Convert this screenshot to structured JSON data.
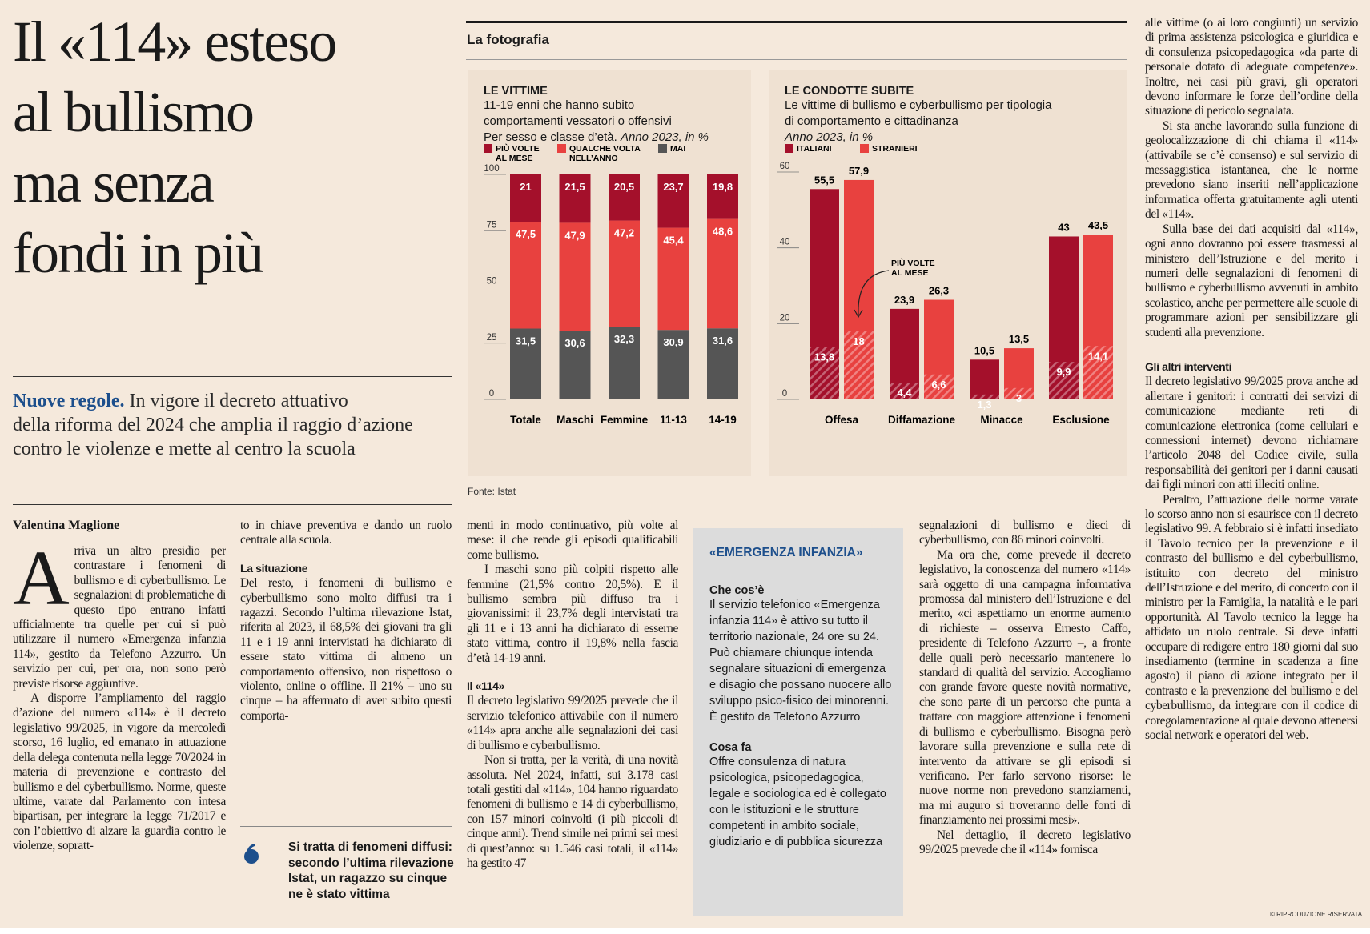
{
  "headline": [
    "Il «114» esteso",
    "al bullismo",
    "ma senza",
    "fondi in più"
  ],
  "standfirst": {
    "lead": "Nuove regole.",
    "lines": [
      " In vigore il decreto attuativo",
      "della riforma del 2024 che amplia il raggio d’azione",
      "contro le violenze e mette al centro la scuola"
    ]
  },
  "byline": "Valentina Maglione",
  "col1": {
    "dropcap": "A",
    "p1": "rriva un altro presidio per contrastare i fenomeni di bullismo e di cyberbullismo. Le segnalazioni di problematiche di questo tipo entrano infatti ufficialmente tra quelle per cui si può utilizzare il numero «Emergenza infanzia 114», gestito da Telefono Azzurro. Un servizio per cui, per ora, non sono però previste risorse aggiuntive.",
    "p2": "A disporre l’ampliamento del raggio d’azione del numero «114» è il decreto legislativo 99/2025, in vigore da mercoledì scorso, 16 luglio, ed emanato in attuazione della delega contenuta nella legge 70/2024 in materia di prevenzione e contrasto del bullismo e del cyberbullismo. Norme, queste ultime, varate dal Parlamento con intesa bipartisan, per integrare la legge 71/2017 e con l’obiettivo di alzare la guardia contro le violenze, sopratt-"
  },
  "col2": {
    "p1": "to in chiave preventiva e dando un ruolo centrale alla scuola.",
    "sub1": "La situazione",
    "p2": "Del resto, i fenomeni di bullismo e cyberbullismo sono molto diffusi tra i ragazzi. Secondo l’ultima rilevazione Istat, riferita al 2023, il 68,5% dei giovani tra gli 11 e i 19 anni intervistati ha dichiarato di essere stato vittima di almeno un comportamento offensivo, non rispettoso o violento, online o offline. Il 21% – uno su cinque – ha affermato di aver subito questi comporta-",
    "quote": "Si tratta di fenomeni diffusi: secondo l’ultima rilevazione Istat, un ragazzo su cinque ne è stato vittima"
  },
  "col3": {
    "p1": "menti in modo continuativo, più volte al mese: il che rende gli episodi qualificabili come bullismo.",
    "p2": "I maschi sono più colpiti rispetto alle femmine (21,5% contro 20,5%). E il bullismo sembra più diffuso tra i giovanissimi: il 23,7% degli intervistati tra gli 11 e i 13 anni ha dichiarato di esserne stato vittima, contro il 19,8% nella fascia d’età 14-19 anni.",
    "sub1": "Il «114»",
    "p3": "Il decreto legislativo 99/2025 prevede che il servizio telefonico attivabile con il numero «114» apra anche alle segnalazioni dei casi di bullismo e cyberbullismo.",
    "p4": "Non si tratta, per la verità, di una novità assoluta. Nel 2024, infatti, sui 3.178 casi totali gestiti dal «114», 104 hanno riguardato fenomeni di bullismo e 14 di cyberbullismo, con 157 minori coinvolti (i più piccoli di cinque anni). Trend simile nei primi sei mesi di quest’anno: su 1.546 casi totali, il «114» ha gestito 47"
  },
  "box": {
    "title": "«EMERGENZA INFANZIA»",
    "h1": "Che cos’è",
    "t1": "Il servizio telefonico «Emergenza infanzia 114» è attivo su tutto il territorio nazionale, 24 ore su 24. Può chiamare chiunque intenda segnalare situazioni di emergenza e disagio che possano nuocere allo sviluppo psico-fisico dei minorenni. È gestito da Telefono Azzurro",
    "h2": "Cosa fa",
    "t2": "Offre consulenza di natura psicologica, psicopedagogica, legale e sociologica ed è collegato con le istituzioni e le strutture competenti in ambito sociale, giudiziario e di pubblica sicurezza"
  },
  "col5": {
    "p1": "segnalazioni di bullismo e dieci di cyberbullismo, con 86 minori coinvolti.",
    "p2": "Ma ora che, come prevede il decreto legislativo, la conoscenza del numero «114» sarà oggetto di una campagna informativa promossa dal ministero dell’Istruzione e del merito, «ci aspettiamo un enorme aumento di richieste – osserva Ernesto Caffo, presidente di Telefono Azzurro –, a fronte delle quali però necessario mantenere lo standard di qualità del servizio. Accogliamo con grande favore queste novità normative, che sono parte di un percorso che punta a trattare con maggiore attenzione i fenomeni di bullismo e cyberbullismo. Bisogna però lavorare sulla prevenzione e sulla rete di intervento da attivare se gli episodi si verificano. Per farlo servono risorse: le nuove norme non prevedono stanziamenti, ma mi auguro si troveranno delle fonti di finanziamento nei prossimi mesi».",
    "p3": "Nel dettaglio, il decreto legislativo 99/2025 prevede che il «114» fornisca"
  },
  "col6": {
    "p1": "alle vittime (o ai loro congiunti) un servizio di prima assistenza psicologica e giuridica e di consulenza psicopedagogica «da parte di personale dotato di adeguate competenze». Inoltre, nei casi più gravi, gli operatori devono informare le forze dell’ordine della situazione di pericolo segnalata.",
    "p2": "Si sta anche lavorando sulla funzione di geolocalizzazione di chi chiama il «114» (attivabile se c’è consenso) e sul servizio di messaggistica istantanea, che le norme prevedono siano inseriti nell’applicazione informatica offerta gratuitamente agli utenti del «114».",
    "p3": "Sulla base dei dati acquisiti dal «114», ogni anno dovranno poi essere trasmessi al ministero dell’Istruzione e del merito i numeri delle segnalazioni di fenomeni di bullismo e cyberbullismo avvenuti in ambito scolastico, anche per permettere alle scuole di programmare azioni per sensibilizzare gli studenti alla prevenzione.",
    "sub1": "Gli altri interventi",
    "p4": "Il decreto legislativo 99/2025 prova anche ad allertare i genitori: i contratti dei servizi di comunicazione mediante reti di comunicazione elettronica (come cellulari e connessioni internet) devono richiamare l’articolo 2048 del Codice civile, sulla responsabilità dei genitori per i danni causati dai figli minori con atti illeciti online.",
    "p5": "Peraltro, l’attuazione delle norme varate lo scorso anno non si esaurisce con il decreto legislativo 99. A febbraio si è infatti insediato il Tavolo tecnico per la prevenzione e il contrasto del bullismo e del cyberbullismo, istituito con decreto del ministro dell’Istruzione e del merito, di concerto con il ministro per la Famiglia, la natalità e le pari opportunità. Al Tavolo tecnico la legge ha affidato un ruolo centrale. Si deve infatti occupare di redigere entro 180 giorni dal suo insediamento (termine in scadenza a fine agosto) il piano di azione integrato per il contrasto e la prevenzione del bullismo e del cyberbullismo, da integrare con il codice di coregolamentazione al quale devono attenersi social network e operatori del web.",
    "copyright": "© RIPRODUZIONE RISERVATA"
  },
  "infographic": {
    "title": "La fotografia",
    "source": "Fonte: Istat"
  },
  "colors": {
    "dark_red": "#a4102b",
    "red": "#e8413f",
    "gray": "#555555",
    "blue": "#1d4f8c",
    "panel": "#efe1d2"
  },
  "chart_data": [
    {
      "type": "bar",
      "stacked": true,
      "title": "LE VITTIME",
      "subtitle": [
        "11-19 enni che hanno subito",
        "comportamenti vessatori o offensivi",
        "Per sesso e classe d’età."
      ],
      "subtitle_italic": "Anno 2023, in %",
      "legend": [
        "PIÙ VOLTE",
        "AL MESE",
        "QUALCHE VOLTA",
        "NELL’ANNO",
        "MAI"
      ],
      "categories": [
        "Totale",
        "Maschi",
        "Femmine",
        "11-13",
        "14-19"
      ],
      "yticks": [
        "0",
        "25",
        "50",
        "75",
        "100"
      ],
      "ylim": [
        0,
        100
      ],
      "series": [
        {
          "name": "MAI",
          "values": [
            31.5,
            30.6,
            32.3,
            30.9,
            31.6
          ],
          "labels": [
            "31,5",
            "30,6",
            "32,3",
            "30,9",
            "31,6"
          ]
        },
        {
          "name": "QUALCHE VOLTA NELL’ANNO",
          "values": [
            47.5,
            47.9,
            47.2,
            45.4,
            48.6
          ],
          "labels": [
            "47,5",
            "47,9",
            "47,2",
            "45,4",
            "48,6"
          ]
        },
        {
          "name": "PIÙ VOLTE AL MESE",
          "values": [
            21,
            21.5,
            20.5,
            23.7,
            19.8
          ],
          "labels": [
            "21",
            "21,5",
            "20,5",
            "23,7",
            "19,8"
          ]
        }
      ]
    },
    {
      "type": "bar",
      "title": "LE CONDOTTE SUBITE",
      "subtitle": [
        "Le vittime di bullismo e cyberbullismo per tipologia",
        "di comportamento e cittadinanza"
      ],
      "subtitle_italic": "Anno 2023, in %",
      "legend": [
        "ITALIANI",
        "STRANIERI"
      ],
      "annotation": [
        "PIÙ VOLTE",
        "AL MESE"
      ],
      "categories": [
        "Offesa",
        "Diffamazione",
        "Minacce",
        "Esclusione"
      ],
      "yticks": [
        "0",
        "20",
        "40",
        "60"
      ],
      "ylim": [
        0,
        60
      ],
      "series": [
        {
          "name": "ITALIANI",
          "values": [
            55.5,
            23.9,
            10.5,
            43
          ],
          "labels": [
            "55,5",
            "23,9",
            "10,5",
            "43"
          ],
          "monthly": [
            13.8,
            4.4,
            1.3,
            9.9
          ],
          "monthly_labels": [
            "13,8",
            "4,4",
            "1,3",
            "9,9"
          ]
        },
        {
          "name": "STRANIERI",
          "values": [
            57.9,
            26.3,
            13.5,
            43.5
          ],
          "labels": [
            "57,9",
            "26,3",
            "13,5",
            "43,5"
          ],
          "monthly": [
            18,
            6.6,
            3,
            14.1
          ],
          "monthly_labels": [
            "18",
            "6,6",
            "3",
            "14,1"
          ]
        }
      ]
    }
  ]
}
